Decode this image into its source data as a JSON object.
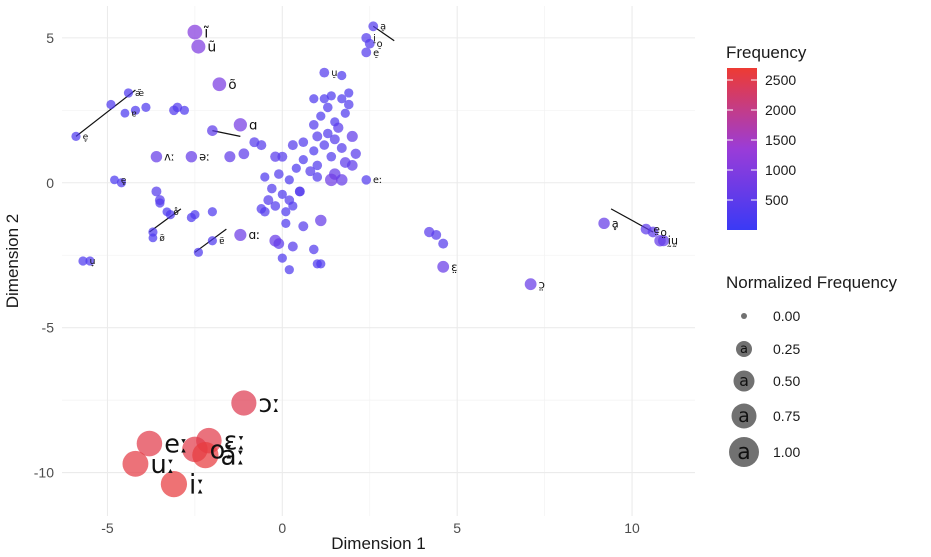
{
  "chart_data": {
    "type": "scatter",
    "xlabel": "Dimension 1",
    "ylabel": "Dimension 2",
    "xlim": [
      -6.3,
      11.8
    ],
    "ylim": [
      -11.5,
      6.1
    ],
    "x_ticks": [
      -5,
      0,
      5,
      10
    ],
    "y_ticks": [
      -10,
      -5,
      0,
      5
    ],
    "grid": true,
    "color_scale": {
      "title": "Frequency",
      "low_color": "#3a3af5",
      "mid_color": "#9a3cd8",
      "high_color": "#ee3b33",
      "min": 0,
      "max": 2700,
      "ticks": [
        500,
        1000,
        1500,
        2000,
        2500
      ]
    },
    "size_legend": {
      "title": "Normalized Frequency",
      "keys": [
        "0.00",
        "0.25",
        "0.50",
        "0.75",
        "1.00"
      ],
      "symbol": "a"
    },
    "labeled_points": [
      {
        "label": "ĩ",
        "x": -2.5,
        "y": 5.2,
        "freq": 1050
      },
      {
        "label": "ũ",
        "x": -2.4,
        "y": 4.7,
        "freq": 950
      },
      {
        "label": "õ",
        "x": -1.8,
        "y": 3.4,
        "freq": 900
      },
      {
        "label": "ɑ",
        "x": -1.2,
        "y": 2.0,
        "freq": 850
      },
      {
        "label": "ɔː",
        "x": -1.1,
        "y": -7.6,
        "freq": 2450
      },
      {
        "label": "ɛː",
        "x": -2.1,
        "y": -8.9,
        "freq": 2500
      },
      {
        "label": "eː",
        "x": -3.8,
        "y": -9.0,
        "freq": 2500
      },
      {
        "label": "uː",
        "x": -4.2,
        "y": -9.7,
        "freq": 2550
      },
      {
        "label": "aː",
        "x": -2.2,
        "y": -9.4,
        "freq": 2600
      },
      {
        "label": "oː",
        "x": -2.5,
        "y": -9.2,
        "freq": 2500
      },
      {
        "label": "iː",
        "x": -3.1,
        "y": -10.4,
        "freq": 2600
      },
      {
        "label": "ɑː",
        "x": -1.2,
        "y": -1.8,
        "freq": 700
      },
      {
        "label": "ʌː",
        "x": -3.6,
        "y": 0.9,
        "freq": 600
      },
      {
        "label": "əː",
        "x": -2.6,
        "y": 0.9,
        "freq": 600
      },
      {
        "label": "ɛ̤",
        "x": 4.6,
        "y": -2.9,
        "freq": 650
      },
      {
        "label": "ɔ̤",
        "x": 7.1,
        "y": -3.5,
        "freq": 650
      },
      {
        "label": "ḁ",
        "x": 9.2,
        "y": -1.4,
        "freq": 600
      },
      {
        "label": "ḭ",
        "x": 10.8,
        "y": -2.0,
        "freq": 600
      },
      {
        "label": "ṵ",
        "x": 10.9,
        "y": -2.0,
        "freq": 550
      },
      {
        "label": "e̤",
        "x": 10.4,
        "y": -1.6,
        "freq": 500
      },
      {
        "label": "o̤",
        "x": 10.6,
        "y": -1.7,
        "freq": 500
      },
      {
        "label": "a̠",
        "x": 2.6,
        "y": 5.4,
        "freq": 380
      },
      {
        "label": "i̠",
        "x": 2.4,
        "y": 5.0,
        "freq": 380
      },
      {
        "label": "o̠",
        "x": 2.5,
        "y": 4.8,
        "freq": 380
      },
      {
        "label": "e̠",
        "x": 2.4,
        "y": 4.5,
        "freq": 380
      },
      {
        "label": "u̠",
        "x": 1.2,
        "y": 3.8,
        "freq": 380
      },
      {
        "label": "eː",
        "x": 2.4,
        "y": 0.1,
        "freq": 350
      },
      {
        "label": "æ̃",
        "x": -4.4,
        "y": 3.1,
        "freq": 300
      },
      {
        "label": "e̞",
        "x": -5.9,
        "y": 1.6,
        "freq": 300
      },
      {
        "label": "u̞",
        "x": -5.7,
        "y": -2.7,
        "freq": 300
      },
      {
        "label": "ɐ̃",
        "x": -2.0,
        "y": -2.0,
        "freq": 300
      },
      {
        "label": "e̥",
        "x": -4.8,
        "y": 0.1,
        "freq": 250
      },
      {
        "label": "ɐ",
        "x": -4.5,
        "y": 2.4,
        "freq": 250
      },
      {
        "label": "ø̃",
        "x": -3.7,
        "y": -1.9,
        "freq": 250
      },
      {
        "label": "o̊",
        "x": -3.3,
        "y": -1.0,
        "freq": 250
      }
    ],
    "points": [
      {
        "x": -4.9,
        "y": 2.7,
        "freq": 300
      },
      {
        "x": -4.2,
        "y": 2.5,
        "freq": 300
      },
      {
        "x": -3.9,
        "y": 2.6,
        "freq": 300
      },
      {
        "x": -3.1,
        "y": 2.5,
        "freq": 350
      },
      {
        "x": -3.0,
        "y": 2.6,
        "freq": 350
      },
      {
        "x": -2.8,
        "y": 2.5,
        "freq": 300
      },
      {
        "x": -2.0,
        "y": 1.8,
        "freq": 500
      },
      {
        "x": -1.5,
        "y": 0.9,
        "freq": 550
      },
      {
        "x": -1.1,
        "y": 1.0,
        "freq": 500
      },
      {
        "x": -0.6,
        "y": 1.3,
        "freq": 400
      },
      {
        "x": -0.2,
        "y": 0.9,
        "freq": 450
      },
      {
        "x": -5.5,
        "y": -2.7,
        "freq": 300
      },
      {
        "x": -4.6,
        "y": 0.0,
        "freq": 300
      },
      {
        "x": -3.6,
        "y": -0.3,
        "freq": 400
      },
      {
        "x": -3.5,
        "y": -0.6,
        "freq": 400
      },
      {
        "x": -3.5,
        "y": -0.7,
        "freq": 300
      },
      {
        "x": -3.2,
        "y": -1.1,
        "freq": 300
      },
      {
        "x": -2.6,
        "y": -1.2,
        "freq": 300
      },
      {
        "x": -2.5,
        "y": -1.1,
        "freq": 300
      },
      {
        "x": -2.0,
        "y": -1.0,
        "freq": 300
      },
      {
        "x": -3.7,
        "y": -1.7,
        "freq": 300
      },
      {
        "x": -2.4,
        "y": -2.4,
        "freq": 300
      },
      {
        "x": -0.2,
        "y": -2.0,
        "freq": 650
      },
      {
        "x": -0.1,
        "y": -2.1,
        "freq": 500
      },
      {
        "x": 0.3,
        "y": -2.2,
        "freq": 400
      },
      {
        "x": 0.2,
        "y": -3.0,
        "freq": 300
      },
      {
        "x": 0.0,
        "y": -2.6,
        "freq": 300
      },
      {
        "x": 0.9,
        "y": -2.3,
        "freq": 350
      },
      {
        "x": 1.0,
        "y": -2.8,
        "freq": 300
      },
      {
        "x": 1.1,
        "y": -2.8,
        "freq": 300
      },
      {
        "x": 1.1,
        "y": -1.3,
        "freq": 600
      },
      {
        "x": 0.6,
        "y": -1.5,
        "freq": 400
      },
      {
        "x": -0.5,
        "y": -1.0,
        "freq": 350
      },
      {
        "x": -0.4,
        "y": -0.6,
        "freq": 400
      },
      {
        "x": -0.5,
        "y": 0.2,
        "freq": 300
      },
      {
        "x": -0.3,
        "y": -0.2,
        "freq": 350
      },
      {
        "x": -0.1,
        "y": 0.3,
        "freq": 350
      },
      {
        "x": 0.2,
        "y": 0.1,
        "freq": 300
      },
      {
        "x": 0.0,
        "y": -0.4,
        "freq": 300
      },
      {
        "x": 0.2,
        "y": -0.6,
        "freq": 350
      },
      {
        "x": 0.3,
        "y": -0.8,
        "freq": 300
      },
      {
        "x": 0.5,
        "y": -0.3,
        "freq": 350
      },
      {
        "x": 0.1,
        "y": -1.0,
        "freq": 300
      },
      {
        "x": -0.2,
        "y": -0.8,
        "freq": 350
      },
      {
        "x": 0.4,
        "y": 0.5,
        "freq": 300
      },
      {
        "x": 0.6,
        "y": 0.8,
        "freq": 300
      },
      {
        "x": 0.6,
        "y": 1.4,
        "freq": 350
      },
      {
        "x": 0.9,
        "y": 1.1,
        "freq": 300
      },
      {
        "x": 0.8,
        "y": 0.4,
        "freq": 400
      },
      {
        "x": 1.0,
        "y": 0.6,
        "freq": 350
      },
      {
        "x": 1.2,
        "y": 1.3,
        "freq": 350
      },
      {
        "x": 1.0,
        "y": 1.6,
        "freq": 400
      },
      {
        "x": 0.9,
        "y": 2.0,
        "freq": 350
      },
      {
        "x": 1.3,
        "y": 1.7,
        "freq": 350
      },
      {
        "x": 1.5,
        "y": 1.5,
        "freq": 400
      },
      {
        "x": 1.6,
        "y": 1.9,
        "freq": 450
      },
      {
        "x": 1.7,
        "y": 1.2,
        "freq": 400
      },
      {
        "x": 1.4,
        "y": 0.9,
        "freq": 350
      },
      {
        "x": 1.8,
        "y": 0.7,
        "freq": 500
      },
      {
        "x": 1.5,
        "y": 0.3,
        "freq": 600
      },
      {
        "x": 1.4,
        "y": 0.1,
        "freq": 750
      },
      {
        "x": 1.7,
        "y": 0.1,
        "freq": 600
      },
      {
        "x": 2.0,
        "y": 0.6,
        "freq": 500
      },
      {
        "x": 2.1,
        "y": 1.0,
        "freq": 450
      },
      {
        "x": 2.0,
        "y": 1.6,
        "freq": 550
      },
      {
        "x": 1.1,
        "y": 2.3,
        "freq": 300
      },
      {
        "x": 1.3,
        "y": 2.6,
        "freq": 350
      },
      {
        "x": 1.4,
        "y": 3.0,
        "freq": 300
      },
      {
        "x": 1.7,
        "y": 2.9,
        "freq": 300
      },
      {
        "x": 1.8,
        "y": 2.4,
        "freq": 300
      },
      {
        "x": 1.5,
        "y": 2.1,
        "freq": 300
      },
      {
        "x": 1.9,
        "y": 2.7,
        "freq": 350
      },
      {
        "x": 0.9,
        "y": 2.9,
        "freq": 300
      },
      {
        "x": 1.2,
        "y": 2.9,
        "freq": 300
      },
      {
        "x": 1.7,
        "y": 3.7,
        "freq": 300
      },
      {
        "x": 1.9,
        "y": 3.1,
        "freq": 300
      },
      {
        "x": 0.5,
        "y": -0.3,
        "freq": 400
      },
      {
        "x": -0.6,
        "y": -0.9,
        "freq": 350
      },
      {
        "x": 0.1,
        "y": -1.4,
        "freq": 300
      },
      {
        "x": 4.2,
        "y": -1.7,
        "freq": 450
      },
      {
        "x": 4.4,
        "y": -1.8,
        "freq": 400
      },
      {
        "x": 4.6,
        "y": -2.1,
        "freq": 400
      },
      {
        "x": 1.0,
        "y": 0.2,
        "freq": 350
      },
      {
        "x": 0.3,
        "y": 1.3,
        "freq": 400
      },
      {
        "x": -0.8,
        "y": 1.4,
        "freq": 400
      },
      {
        "x": 0.0,
        "y": 0.9,
        "freq": 400
      }
    ]
  }
}
